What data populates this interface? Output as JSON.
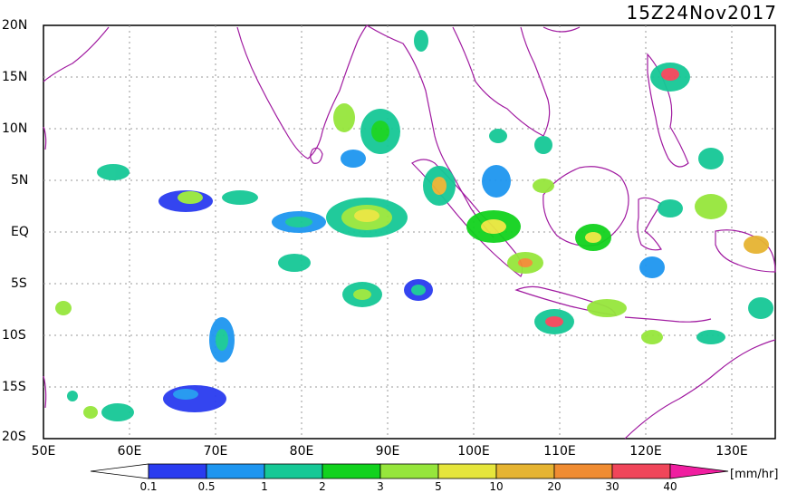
{
  "title": "15Z24Nov2017",
  "lat_labels": [
    "20N",
    "15N",
    "10N",
    "5N",
    "EQ",
    "5S",
    "10S",
    "15S",
    "20S"
  ],
  "lon_labels": [
    "50E",
    "60E",
    "70E",
    "80E",
    "90E",
    "100E",
    "110E",
    "120E",
    "130E"
  ],
  "colorbar": {
    "labels": [
      "0.1",
      "0.5",
      "1",
      "2",
      "3",
      "5",
      "10",
      "20",
      "30",
      "40"
    ],
    "unit": "[mm/hr]",
    "colors": [
      "#2a3cf0",
      "#1e96f0",
      "#16c896",
      "#12d21e",
      "#96e63c",
      "#e6e63c",
      "#e6b432",
      "#f08c32",
      "#f0465a",
      "#f01ea0"
    ]
  },
  "map": {
    "lon_range": [
      50,
      135
    ],
    "lat_range": [
      -20,
      20
    ],
    "coastline_color": "#a01aa0",
    "grid": true
  }
}
